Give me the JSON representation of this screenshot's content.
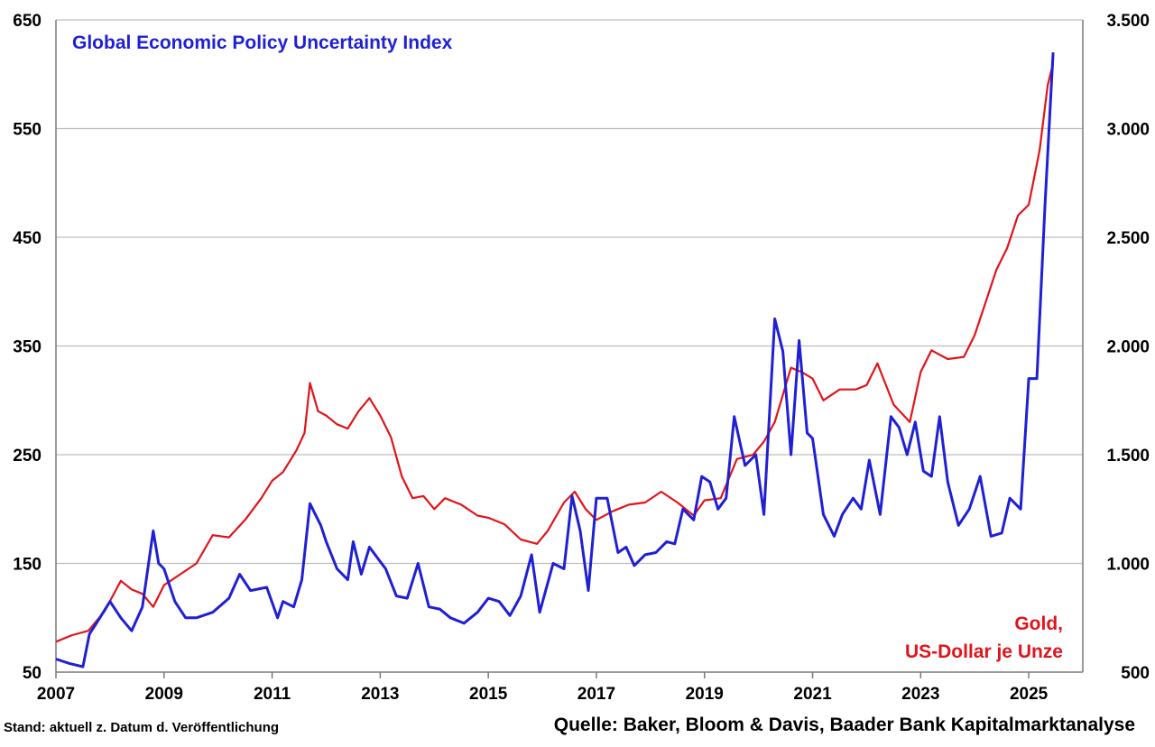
{
  "chart_data": {
    "type": "line",
    "x_ticks": [
      "2007",
      "2009",
      "2011",
      "2013",
      "2015",
      "2017",
      "2019",
      "2021",
      "2023",
      "2025"
    ],
    "xlim": [
      2007,
      2026.0
    ],
    "y_left": {
      "ticks": [
        "50",
        "150",
        "250",
        "350",
        "450",
        "550",
        "650"
      ],
      "ylim": [
        50,
        650
      ]
    },
    "y_right": {
      "ticks": [
        "500",
        "1.000",
        "1.500",
        "2.000",
        "2.500",
        "3.000",
        "3.500"
      ],
      "ylim": [
        500,
        3500
      ]
    },
    "grid": true,
    "series": [
      {
        "name": "Global Economic Policy Uncertainty Index",
        "axis": "left",
        "color": "#1f1fd6",
        "x": [
          2007.0,
          2007.25,
          2007.5,
          2007.62,
          2007.75,
          2008.0,
          2008.2,
          2008.4,
          2008.6,
          2008.8,
          2008.9,
          2009.0,
          2009.2,
          2009.4,
          2009.6,
          2009.9,
          2010.2,
          2010.4,
          2010.6,
          2010.9,
          2011.1,
          2011.2,
          2011.4,
          2011.55,
          2011.7,
          2011.9,
          2012.0,
          2012.2,
          2012.4,
          2012.5,
          2012.65,
          2012.8,
          2012.95,
          2013.1,
          2013.3,
          2013.5,
          2013.7,
          2013.9,
          2014.1,
          2014.3,
          2014.55,
          2014.8,
          2015.0,
          2015.2,
          2015.4,
          2015.6,
          2015.8,
          2015.95,
          2016.2,
          2016.4,
          2016.55,
          2016.7,
          2016.85,
          2017.0,
          2017.2,
          2017.4,
          2017.55,
          2017.7,
          2017.9,
          2018.1,
          2018.3,
          2018.45,
          2018.6,
          2018.8,
          2018.95,
          2019.1,
          2019.25,
          2019.4,
          2019.55,
          2019.75,
          2019.95,
          2020.1,
          2020.3,
          2020.45,
          2020.6,
          2020.75,
          2020.9,
          2021.0,
          2021.2,
          2021.4,
          2021.55,
          2021.75,
          2021.9,
          2022.05,
          2022.25,
          2022.45,
          2022.6,
          2022.75,
          2022.9,
          2023.05,
          2023.2,
          2023.35,
          2023.5,
          2023.7,
          2023.9,
          2024.1,
          2024.3,
          2024.5,
          2024.65,
          2024.85,
          2025.0,
          2025.15,
          2025.3,
          2025.45
        ],
        "y": [
          62,
          58,
          55,
          85,
          95,
          115,
          100,
          88,
          110,
          180,
          150,
          145,
          115,
          100,
          100,
          105,
          118,
          140,
          125,
          128,
          100,
          115,
          110,
          135,
          205,
          185,
          170,
          145,
          135,
          170,
          140,
          165,
          155,
          145,
          120,
          118,
          150,
          110,
          108,
          100,
          95,
          105,
          118,
          115,
          102,
          120,
          158,
          105,
          150,
          145,
          212,
          180,
          125,
          210,
          210,
          160,
          165,
          148,
          158,
          160,
          170,
          168,
          200,
          190,
          230,
          225,
          200,
          210,
          285,
          240,
          250,
          195,
          375,
          345,
          250,
          355,
          270,
          265,
          195,
          175,
          195,
          210,
          200,
          245,
          195,
          285,
          275,
          250,
          280,
          235,
          230,
          285,
          225,
          185,
          200,
          230,
          175,
          178,
          210,
          200,
          320,
          320,
          480,
          620
        ]
      },
      {
        "name": "Gold, US-Dollar je Unze",
        "axis": "right",
        "color": "#e0141a",
        "x": [
          2007.0,
          2007.3,
          2007.6,
          2007.9,
          2008.2,
          2008.4,
          2008.6,
          2008.8,
          2009.0,
          2009.3,
          2009.6,
          2009.9,
          2010.2,
          2010.5,
          2010.8,
          2011.0,
          2011.2,
          2011.45,
          2011.6,
          2011.7,
          2011.85,
          2012.0,
          2012.2,
          2012.4,
          2012.6,
          2012.8,
          2013.0,
          2013.2,
          2013.4,
          2013.6,
          2013.8,
          2014.0,
          2014.2,
          2014.5,
          2014.8,
          2015.0,
          2015.3,
          2015.6,
          2015.9,
          2016.1,
          2016.4,
          2016.6,
          2016.8,
          2017.0,
          2017.3,
          2017.6,
          2017.9,
          2018.2,
          2018.5,
          2018.8,
          2019.0,
          2019.3,
          2019.6,
          2019.9,
          2020.1,
          2020.3,
          2020.6,
          2020.8,
          2021.0,
          2021.2,
          2021.5,
          2021.8,
          2022.0,
          2022.2,
          2022.5,
          2022.8,
          2023.0,
          2023.2,
          2023.5,
          2023.8,
          2024.0,
          2024.2,
          2024.4,
          2024.6,
          2024.8,
          2025.0,
          2025.2,
          2025.35,
          2025.45
        ],
        "y": [
          640,
          670,
          690,
          780,
          920,
          880,
          860,
          800,
          900,
          950,
          1000,
          1130,
          1120,
          1200,
          1300,
          1380,
          1420,
          1520,
          1600,
          1830,
          1700,
          1680,
          1640,
          1620,
          1700,
          1760,
          1680,
          1580,
          1400,
          1300,
          1310,
          1250,
          1300,
          1270,
          1220,
          1210,
          1180,
          1110,
          1090,
          1150,
          1280,
          1330,
          1250,
          1200,
          1240,
          1270,
          1280,
          1330,
          1280,
          1220,
          1290,
          1300,
          1480,
          1500,
          1560,
          1650,
          1900,
          1880,
          1850,
          1750,
          1800,
          1800,
          1820,
          1920,
          1730,
          1650,
          1880,
          1980,
          1940,
          1950,
          2050,
          2200,
          2350,
          2450,
          2600,
          2650,
          2900,
          3200,
          3300
        ]
      }
    ]
  },
  "footer": {
    "left": "Stand: aktuell z. Datum d. Veröffentlichung",
    "right": "Quelle: Baker, Bloom & Davis, Baader Bank Kapitalmarktanalyse"
  },
  "labels": {
    "blue_series_title": "Global Economic Policy Uncertainty Index",
    "red_series_line1": "Gold,",
    "red_series_line2": "US-Dollar je Unze"
  }
}
